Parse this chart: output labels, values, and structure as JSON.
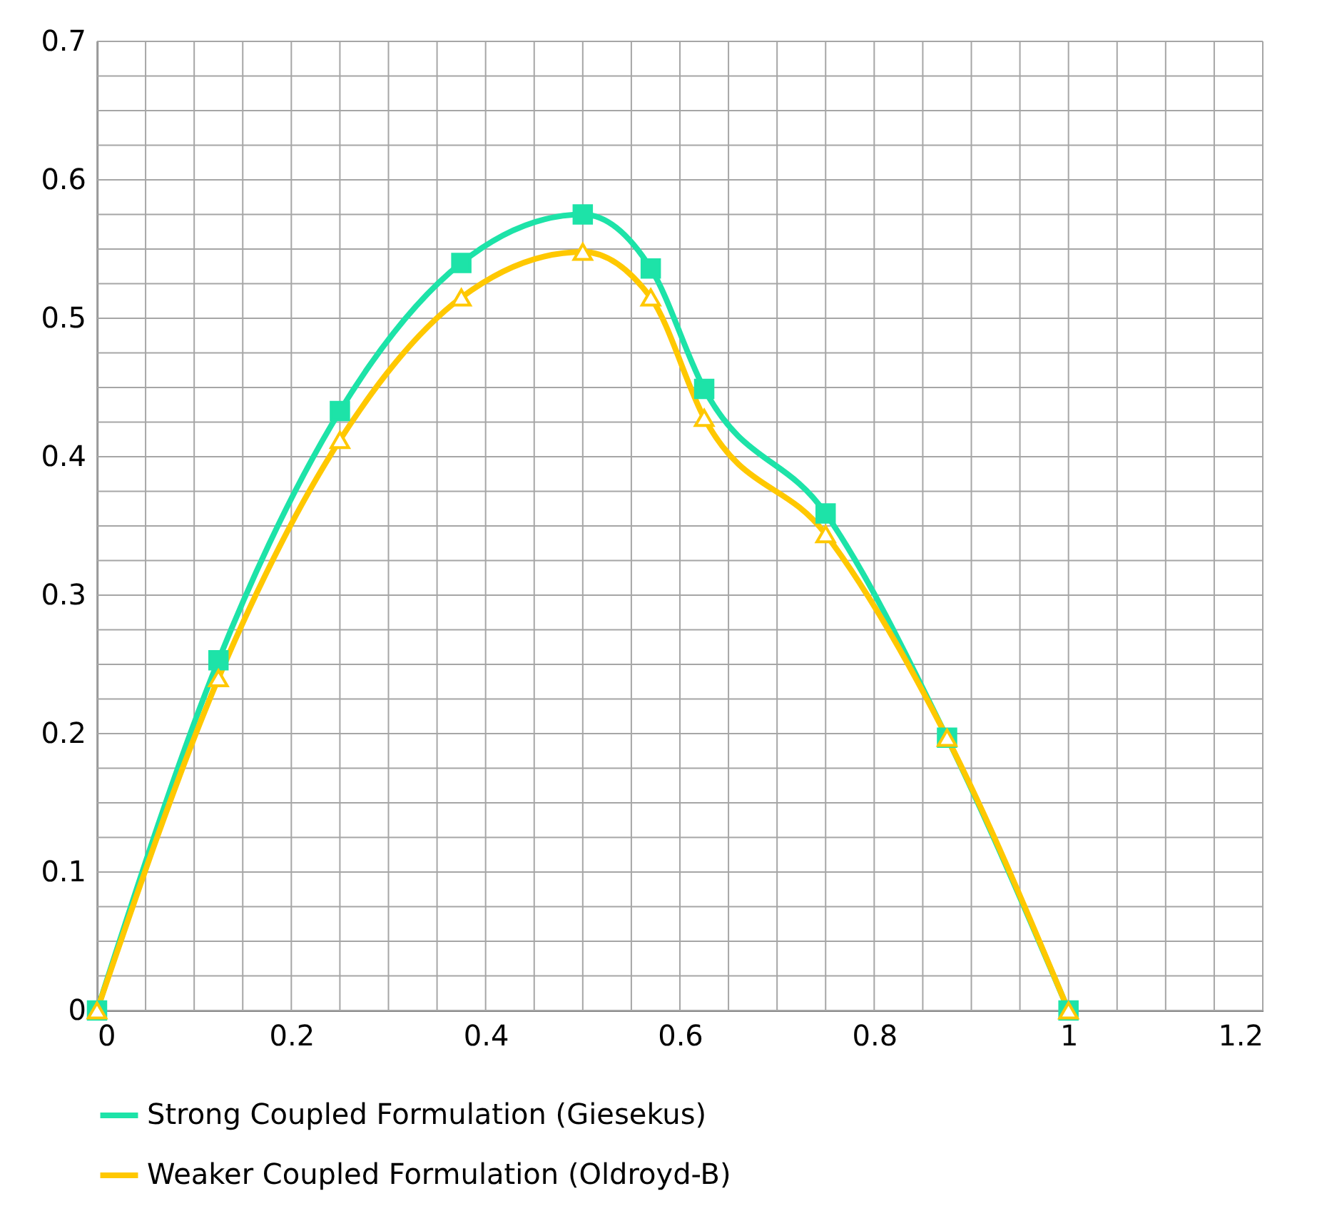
{
  "chart_data": {
    "type": "line",
    "x": [
      0,
      0.125,
      0.25,
      0.375,
      0.5,
      0.57,
      0.625,
      0.75,
      0.875,
      1
    ],
    "series": [
      {
        "name": "Strong Coupled Formulation (Giesekus)",
        "color": "#1de3a8",
        "marker": "square",
        "values": [
          0,
          0.253,
          0.433,
          0.54,
          0.575,
          0.536,
          0.449,
          0.359,
          0.197,
          0
        ]
      },
      {
        "name": "Weaker Coupled Formulation (Oldroyd-B)",
        "color": "#ffc800",
        "marker": "triangle",
        "values": [
          0,
          0.24,
          0.412,
          0.515,
          0.548,
          0.515,
          0.428,
          0.344,
          0.197,
          0
        ]
      }
    ],
    "xlim": [
      0,
      1.2
    ],
    "xticks": [
      0,
      {
        "value": 0.05,
        "label": null
      },
      {
        "value": 0.1,
        "label": null
      },
      {
        "value": 0.15,
        "label": null
      },
      0.2,
      {
        "value": 0.25,
        "label": null
      },
      {
        "value": 0.3,
        "label": null
      },
      {
        "value": 0.35,
        "label": null
      },
      0.4,
      {
        "value": 0.45,
        "label": null
      },
      {
        "value": 0.5,
        "label": null
      },
      {
        "value": 0.55,
        "label": null
      },
      0.6,
      {
        "value": 0.65,
        "label": null
      },
      {
        "value": 0.7,
        "label": null
      },
      {
        "value": 0.75,
        "label": null
      },
      0.8,
      {
        "value": 0.85,
        "label": null
      },
      {
        "value": 0.9,
        "label": null
      },
      {
        "value": 0.95,
        "label": null
      },
      1,
      {
        "value": 1.05,
        "label": null
      },
      {
        "value": 1.1,
        "label": null
      },
      {
        "value": 1.15,
        "label": null
      },
      1.2
    ],
    "ylim": [
      0,
      0.7
    ],
    "yticks": [
      0,
      {
        "value": 0.025,
        "label": null
      },
      {
        "value": 0.05,
        "label": null
      },
      {
        "value": 0.075,
        "label": null
      },
      0.1,
      {
        "value": 0.125,
        "label": null
      },
      {
        "value": 0.15,
        "label": null
      },
      {
        "value": 0.175,
        "label": null
      },
      0.2,
      {
        "value": 0.225,
        "label": null
      },
      {
        "value": 0.25,
        "label": null
      },
      {
        "value": 0.275,
        "label": null
      },
      0.3,
      {
        "value": 0.325,
        "label": null
      },
      {
        "value": 0.35,
        "label": null
      },
      {
        "value": 0.375,
        "label": null
      },
      0.4,
      {
        "value": 0.425,
        "label": null
      },
      {
        "value": 0.45,
        "label": null
      },
      {
        "value": 0.475,
        "label": null
      },
      0.5,
      {
        "value": 0.525,
        "label": null
      },
      {
        "value": 0.55,
        "label": null
      },
      {
        "value": 0.575,
        "label": null
      },
      0.6,
      {
        "value": 0.625,
        "label": null
      },
      {
        "value": 0.65,
        "label": null
      },
      {
        "value": 0.675,
        "label": null
      },
      0.7
    ],
    "grid": true,
    "legend": "bottom",
    "line_style": "solid"
  }
}
